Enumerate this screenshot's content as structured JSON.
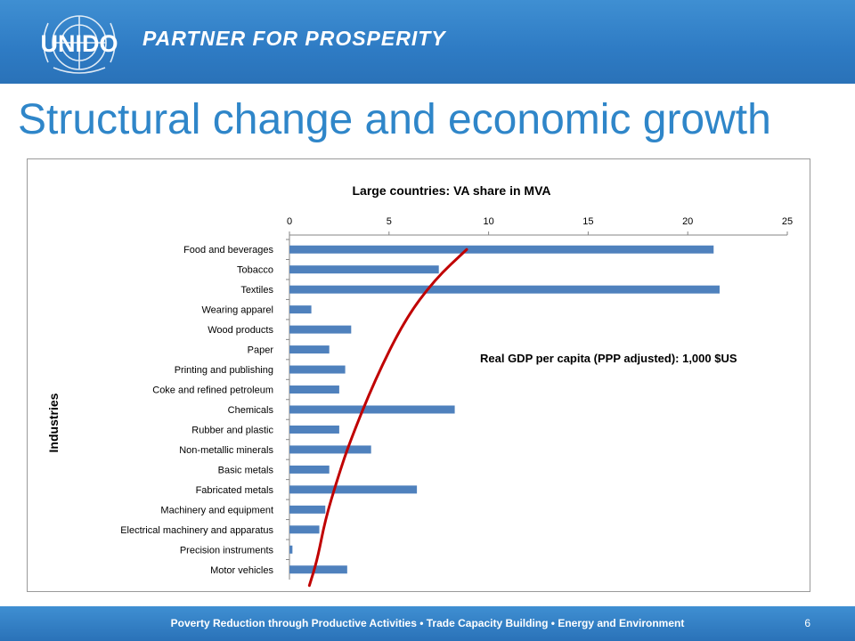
{
  "header": {
    "logo_text": "UNIDO",
    "tagline": "PARTNER FOR PROSPERITY",
    "brand_color": "#2e7bc4"
  },
  "slide": {
    "title": "Structural change and economic growth",
    "title_color": "#2f86c9",
    "page_number": "6"
  },
  "footer": {
    "text": "Poverty Reduction through Productive Activities  •  Trade Capacity Building  •  Energy and Environment"
  },
  "chart_data": {
    "type": "bar",
    "orientation": "horizontal",
    "title": "Large countries: VA share in MVA",
    "ylabel": "Industries",
    "xlabel": "",
    "xlim": [
      0,
      25
    ],
    "xticks": [
      0,
      5,
      10,
      15,
      20,
      25
    ],
    "x_axis_position": "top",
    "bar_color": "#4f81bd",
    "categories": [
      "Food and beverages",
      "Tobacco",
      "Textiles",
      "Wearing apparel",
      "Wood products",
      "Paper",
      "Printing and publishing",
      "Coke and refined petroleum",
      "Chemicals",
      "Rubber and plastic",
      "Non-metallic minerals",
      "Basic metals",
      "Fabricated metals",
      "Machinery and equipment",
      "Electrical machinery and apparatus",
      "Precision instruments",
      "Motor vehicles"
    ],
    "values": [
      21.3,
      7.5,
      21.6,
      1.1,
      3.1,
      2.0,
      2.8,
      2.5,
      8.3,
      2.5,
      4.1,
      2.0,
      6.4,
      1.8,
      1.5,
      0.15,
      2.9
    ],
    "annotation": {
      "text": "Real GDP per capita (PPP adjusted): 1,000 $US",
      "curve_color": "#c00000",
      "curve_points": [
        [
          8.9,
          0
        ],
        [
          7.3,
          1.5
        ],
        [
          5.8,
          3.5
        ],
        [
          4.3,
          6.5
        ],
        [
          3.0,
          9.7
        ],
        [
          2.4,
          11.5
        ],
        [
          1.8,
          13.5
        ],
        [
          1.4,
          15.5
        ],
        [
          1.0,
          16.8
        ]
      ]
    }
  }
}
